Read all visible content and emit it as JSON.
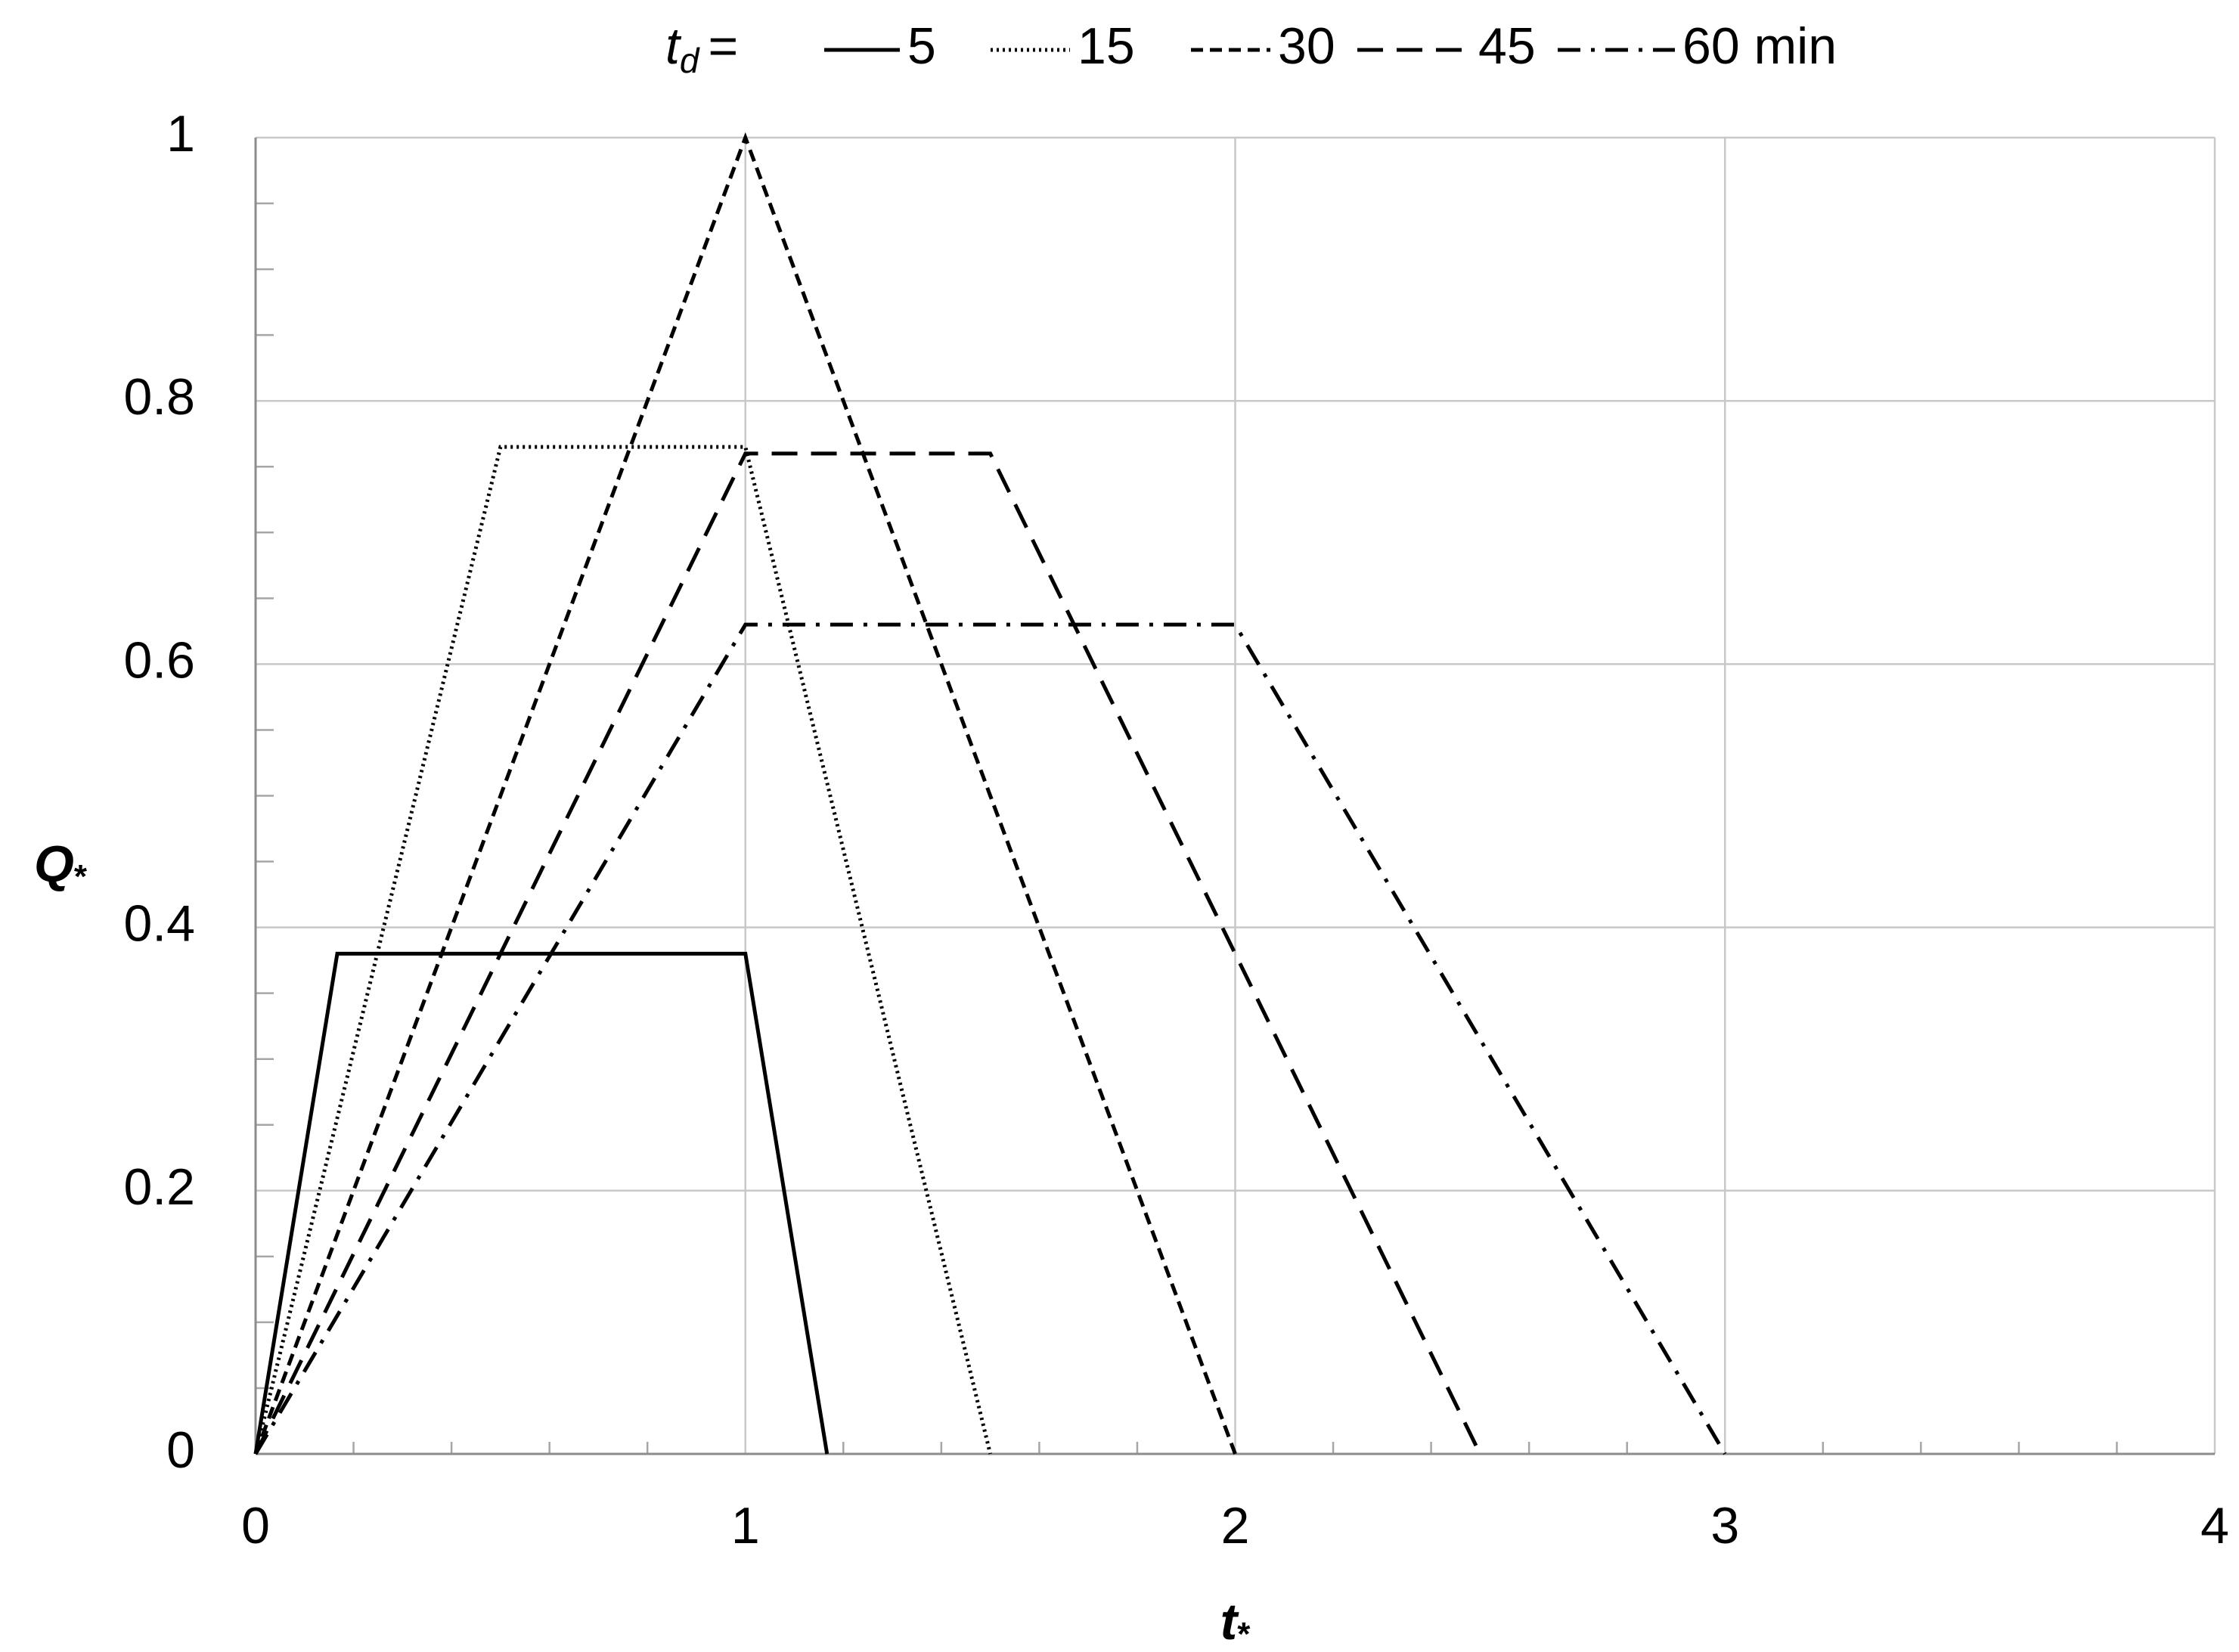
{
  "chart_data": {
    "type": "line",
    "legend_title": {
      "text": "t",
      "sub": "d",
      "suffix": "="
    },
    "xlabel": {
      "text": "t",
      "sub": "*"
    },
    "ylabel": {
      "text": "Q",
      "sub": "*"
    },
    "xlim": [
      0,
      4
    ],
    "xticks": [
      0,
      1,
      2,
      3,
      4
    ],
    "ylim": [
      0,
      1
    ],
    "yticks": [
      0,
      0.2,
      0.4,
      0.6,
      0.8,
      1
    ],
    "x_minor_ticks": [
      0.2,
      0.4,
      0.6,
      0.8,
      1.2,
      1.4,
      1.6,
      1.8,
      2.2,
      2.4,
      2.6,
      2.8,
      3.2,
      3.4,
      3.6,
      3.8
    ],
    "y_minor_ticks": [
      0.05,
      0.1,
      0.15,
      0.25,
      0.3,
      0.35,
      0.45,
      0.5,
      0.55,
      0.65,
      0.7,
      0.75,
      0.85,
      0.9,
      0.95
    ],
    "grid": true,
    "legend": "top",
    "series": [
      {
        "name": "5",
        "color": "#000000",
        "dash": "solid",
        "x": [
          0,
          0.1667,
          1,
          1.1667
        ],
        "values": [
          0,
          0.38,
          0.38,
          0
        ]
      },
      {
        "name": "15",
        "color": "#000000",
        "dash": "dotted",
        "x": [
          0,
          0.5,
          1,
          1.5
        ],
        "values": [
          0,
          0.765,
          0.765,
          0
        ]
      },
      {
        "name": "30",
        "color": "#000000",
        "dash": "short-dash",
        "x": [
          0,
          1,
          2
        ],
        "values": [
          0,
          1,
          0
        ]
      },
      {
        "name": "45",
        "color": "#000000",
        "dash": "long-dash",
        "x": [
          0,
          1,
          1.5,
          2.5
        ],
        "values": [
          0,
          0.76,
          0.76,
          0
        ]
      },
      {
        "name": "60 min",
        "color": "#000000",
        "dash": "dash-dot",
        "x": [
          0,
          1,
          2,
          3
        ],
        "values": [
          0,
          0.63,
          0.63,
          0
        ]
      }
    ]
  }
}
